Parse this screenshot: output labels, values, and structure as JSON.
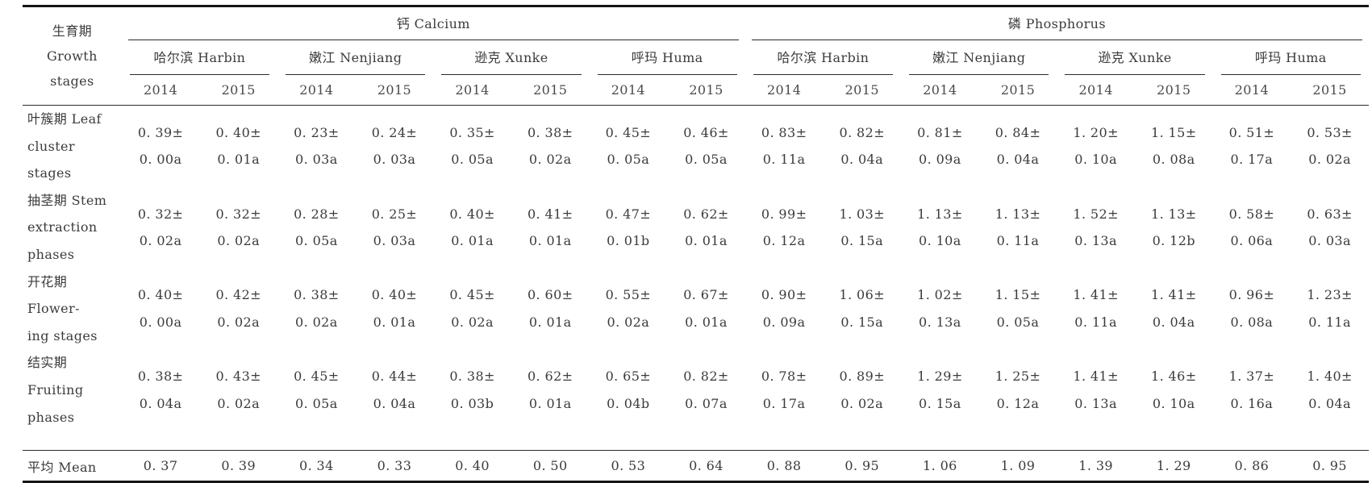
{
  "table": {
    "stub_lines": [
      "生育期",
      "Growth",
      "stages"
    ],
    "groups": [
      {
        "label": "钙 Calcium"
      },
      {
        "label": "磷 Phosphorus"
      }
    ],
    "locations": [
      "哈尔滨 Harbin",
      "嫩江 Nenjiang",
      "逊克 Xunke",
      "呼玛 Huma"
    ],
    "years": [
      "2014",
      "2015"
    ],
    "rows": [
      {
        "label": "叶簇期 Leaf\ncluster stages",
        "values": [
          "0. 39±\n0. 00a",
          "0. 40±\n0. 01a",
          "0. 23±\n0. 03a",
          "0. 24±\n0. 03a",
          "0. 35±\n0. 05a",
          "0. 38±\n0. 02a",
          "0. 45±\n0. 05a",
          "0. 46±\n0. 05a",
          "0. 83±\n0. 11a",
          "0. 82±\n0. 04a",
          "0. 81±\n0. 09a",
          "0. 84±\n0. 04a",
          "1. 20±\n0. 10a",
          "1. 15±\n0. 08a",
          "0. 51±\n0. 17a",
          "0. 53±\n0. 02a"
        ]
      },
      {
        "label": "抽茎期 Stem\nextraction phases",
        "values": [
          "0. 32±\n0. 02a",
          "0. 32±\n0. 02a",
          "0. 28±\n0. 05a",
          "0. 25±\n0. 03a",
          "0. 40±\n0. 01a",
          "0. 41±\n0. 01a",
          "0. 47±\n0. 01b",
          "0. 62±\n0. 01a",
          "0. 99±\n0. 12a",
          "1. 03±\n0. 15a",
          "1. 13±\n0. 10a",
          "1. 13±\n0. 11a",
          "1. 52±\n0. 13a",
          "1. 13±\n0. 12b",
          "0. 58±\n0. 06a",
          "0. 63±\n0. 03a"
        ]
      },
      {
        "label": "开花期 Flower-\ning stages",
        "values": [
          "0. 40±\n0. 00a",
          "0. 42±\n0. 02a",
          "0. 38±\n0. 02a",
          "0. 40±\n0. 01a",
          "0. 45±\n0. 02a",
          "0. 60±\n0. 01a",
          "0. 55±\n0. 02a",
          "0. 67±\n0. 01a",
          "0. 90±\n0. 09a",
          "1. 06±\n0. 15a",
          "1. 02±\n0. 13a",
          "1. 15±\n0. 05a",
          "1. 41±\n0. 11a",
          "1. 41±\n0. 04a",
          "0. 96±\n0. 08a",
          "1. 23±\n0. 11a"
        ]
      },
      {
        "label": "结实期 Fruiting\nphases",
        "values": [
          "0. 38±\n0. 04a",
          "0. 43±\n0. 02a",
          "0. 45±\n0. 05a",
          "0. 44±\n0. 04a",
          "0. 38±\n0. 03b",
          "0. 62±\n0. 01a",
          "0. 65±\n0. 04b",
          "0. 82±\n0. 07a",
          "0. 78±\n0. 17a",
          "0. 89±\n0. 02a",
          "1. 29±\n0. 15a",
          "1. 25±\n0. 12a",
          "1. 41±\n0. 13a",
          "1. 46±\n0. 10a",
          "1. 37±\n0. 16a",
          "1. 40±\n0. 04a"
        ]
      }
    ],
    "mean": {
      "label": "平均 Mean",
      "values": [
        "0. 37",
        "0. 39",
        "0. 34",
        "0. 33",
        "0. 40",
        "0. 50",
        "0. 53",
        "0. 64",
        "0. 88",
        "0. 95",
        "1. 06",
        "1. 09",
        "1. 39",
        "1. 29",
        "0. 86",
        "0. 95"
      ]
    }
  }
}
